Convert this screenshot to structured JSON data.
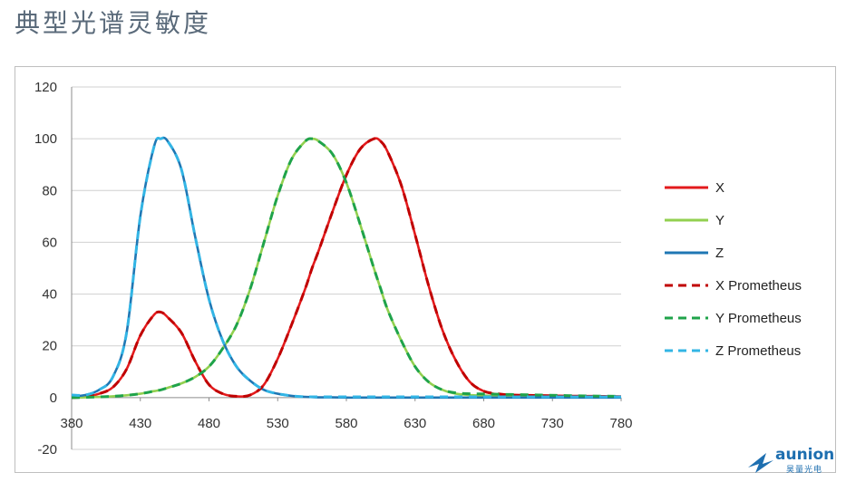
{
  "page": {
    "title": "典型光谱灵敏度"
  },
  "logo": {
    "name": "aunion",
    "subtitle": "昊量光电"
  },
  "chart_data": {
    "type": "line",
    "title": "",
    "xlabel": "",
    "ylabel": "",
    "xlim": [
      380,
      780
    ],
    "ylim": [
      -20,
      120
    ],
    "x_ticks": [
      "380",
      "430",
      "480",
      "530",
      "580",
      "630",
      "680",
      "730",
      "780"
    ],
    "y_ticks": [
      "-20",
      "0",
      "20",
      "40",
      "60",
      "80",
      "100",
      "120"
    ],
    "grid": true,
    "legend_position": "right",
    "x": [
      380,
      390,
      400,
      410,
      420,
      430,
      440,
      445,
      450,
      460,
      470,
      480,
      490,
      500,
      510,
      520,
      530,
      540,
      550,
      555,
      560,
      570,
      580,
      590,
      600,
      605,
      610,
      620,
      630,
      640,
      650,
      660,
      670,
      680,
      690,
      700,
      720,
      740,
      760,
      780
    ],
    "series": [
      {
        "name": "X",
        "color": "#e31a1c",
        "dash": "solid",
        "values": [
          0,
          0.3,
          1.5,
          4,
          11,
          24,
          32,
          33,
          31,
          25,
          14,
          5,
          1.5,
          0.5,
          1,
          5,
          15,
          28,
          42,
          50,
          57,
          72,
          86,
          96,
          100,
          99,
          95,
          82,
          63,
          43,
          26,
          14,
          6,
          2.5,
          1.2,
          0.7,
          0.4,
          0.3,
          0.2,
          0.1
        ]
      },
      {
        "name": "Y",
        "color": "#92d050",
        "dash": "solid",
        "values": [
          0,
          0.1,
          0.3,
          0.5,
          0.9,
          1.5,
          2.5,
          3,
          3.8,
          5.5,
          8,
          12,
          19,
          28,
          42,
          60,
          78,
          92,
          99,
          100,
          99,
          94,
          83,
          67,
          50,
          42,
          34,
          22,
          12,
          6,
          3,
          1.5,
          1,
          0.8,
          0.6,
          0.5,
          0.3,
          0.2,
          0.1,
          0.1
        ]
      },
      {
        "name": "Z",
        "color": "#1f77b4",
        "dash": "solid",
        "values": [
          0.5,
          1,
          3,
          8,
          25,
          70,
          97,
          100,
          99,
          88,
          62,
          38,
          22,
          12,
          6.5,
          3,
          1.5,
          0.7,
          0.3,
          0.2,
          0.1,
          0.1,
          0,
          0,
          0,
          0,
          0,
          0,
          0,
          0,
          0,
          0,
          0,
          0,
          0,
          0,
          0,
          0,
          0,
          0
        ]
      },
      {
        "name": "X Prometheus",
        "color": "#c00000",
        "dash": "dashed",
        "values": [
          0,
          0.3,
          1.5,
          4,
          11,
          24,
          32,
          33,
          31,
          25,
          14,
          5,
          1.5,
          0.5,
          1,
          5,
          15,
          28,
          42,
          50,
          57,
          72,
          86,
          96,
          100,
          99,
          95,
          82,
          63,
          43,
          26,
          14,
          6,
          2.5,
          1.5,
          1,
          0.8,
          0.6,
          0.5,
          0.4
        ]
      },
      {
        "name": "Y Prometheus",
        "color": "#1fa34a",
        "dash": "dashed",
        "values": [
          0,
          0.1,
          0.3,
          0.5,
          0.9,
          1.5,
          2.5,
          3,
          3.8,
          5.5,
          8,
          12,
          19,
          28,
          42,
          60,
          78,
          92,
          99,
          100,
          99,
          94,
          83,
          67,
          50,
          42,
          34,
          22,
          12,
          6,
          3,
          1.8,
          1.5,
          1.4,
          1.3,
          1.2,
          1,
          0.8,
          0.6,
          0.5
        ]
      },
      {
        "name": "Z Prometheus",
        "color": "#33b5e5",
        "dash": "dashed",
        "values": [
          1,
          1,
          3,
          8,
          25,
          70,
          97,
          100,
          99,
          88,
          62,
          38,
          22,
          12,
          6.5,
          3,
          1.5,
          0.7,
          0.3,
          0.3,
          0.3,
          0.3,
          0.3,
          0.3,
          0.3,
          0.3,
          0.3,
          0.3,
          0.3,
          0.3,
          0.3,
          0.3,
          0.3,
          0.3,
          0.3,
          0.3,
          0.3,
          0.3,
          0.3,
          0.3
        ]
      }
    ]
  }
}
